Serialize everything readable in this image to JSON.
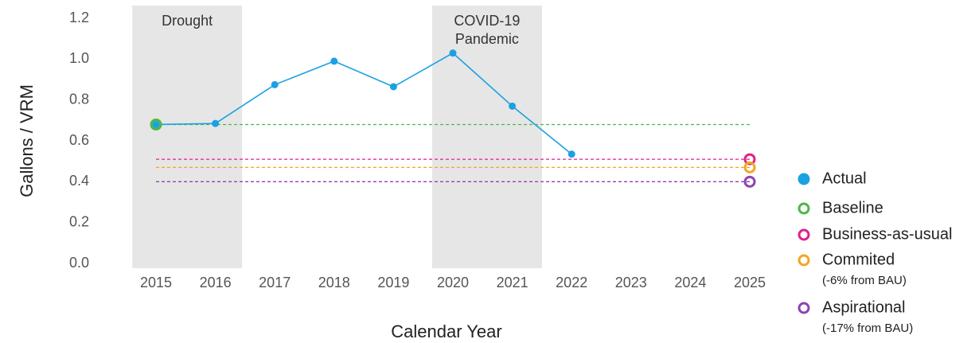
{
  "chart_data": {
    "type": "line",
    "y_label": "Gallons / VRM",
    "x_label": "Calendar Year",
    "x": [
      2015,
      2016,
      2017,
      2018,
      2019,
      2020,
      2021,
      2022,
      2023,
      2024,
      2025
    ],
    "xlim": [
      2014.5,
      2025.5
    ],
    "ylim": [
      0,
      1.2
    ],
    "yticks": [
      {
        "value": 0,
        "label": "0.0"
      },
      0.2,
      0.4,
      0.6,
      0.8,
      {
        "value": 1,
        "label": "1.0"
      },
      1.2
    ],
    "shaded_regions": [
      {
        "label": [
          "Drought"
        ],
        "x": [
          2014.6,
          2016.45
        ]
      },
      {
        "label": [
          "COVID-19",
          "Pandemic"
        ],
        "x": [
          2019.65,
          2021.5
        ]
      }
    ],
    "series": [
      {
        "name": "Actual",
        "color": "#1ba1e2",
        "values": [
          0.68,
          0.685,
          0.875,
          0.99,
          0.865,
          1.03,
          0.77,
          0.535,
          null,
          null,
          null
        ]
      }
    ],
    "reference_lines": [
      {
        "name": "Baseline",
        "color": "#4cb848",
        "value": 0.68,
        "marker_year": 2015
      },
      {
        "name": "Business-as-usual",
        "color": "#e0218a",
        "value": 0.51,
        "marker_year": 2025
      },
      {
        "name": "Commited",
        "note": "(-6% from BAU)",
        "color": "#f5a623",
        "value": 0.47,
        "marker_year": 2025
      },
      {
        "name": "Aspirational",
        "note": "(-17% from BAU)",
        "color": "#8e44ad",
        "value": 0.4,
        "marker_year": 2025
      }
    ]
  }
}
